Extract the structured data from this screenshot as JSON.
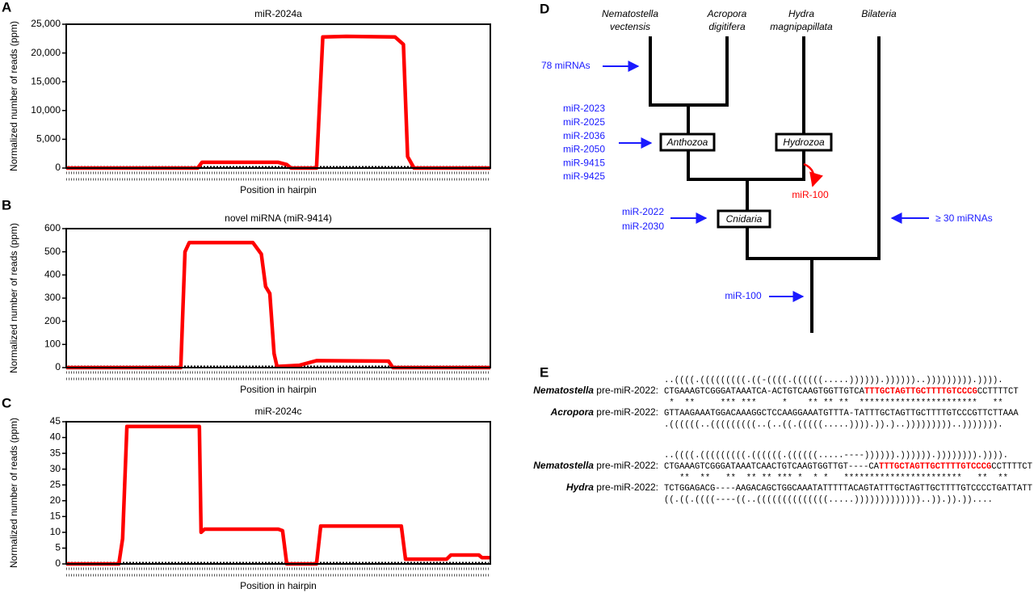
{
  "panels": [
    "A",
    "B",
    "C",
    "D",
    "E"
  ],
  "chart_data": [
    {
      "type": "line",
      "title": "miR-2024a",
      "xlabel": "Position in hairpin",
      "ylabel": "Normalized number of reads (ppm)",
      "xlim": [
        0,
        100
      ],
      "ylim": [
        0,
        25000
      ],
      "yticks": [
        0,
        {
          "value": 5000,
          "label": "5,000"
        },
        {
          "value": 10000,
          "label": "10,000"
        },
        {
          "value": 15000,
          "label": "15,000"
        },
        {
          "value": 20000,
          "label": "20,000"
        },
        {
          "value": 25000,
          "label": "25,000"
        }
      ],
      "x": [
        0,
        31,
        32,
        50,
        52,
        53,
        59,
        60.5,
        66,
        77.5,
        79.5,
        80.5,
        82,
        100
      ],
      "series": [
        {
          "color": "#ff0000",
          "values": [
            0,
            0,
            1000,
            1000,
            600,
            0,
            0,
            22800,
            22900,
            22800,
            21500,
            2000,
            0,
            0
          ]
        }
      ]
    },
    {
      "type": "line",
      "title": "novel miRNA (miR-9414)",
      "xlabel": "Position in hairpin",
      "ylabel": "Normalized number of reads (ppm)",
      "xlim": [
        0,
        100
      ],
      "ylim": [
        0,
        600
      ],
      "yticks": [
        0,
        100,
        200,
        300,
        400,
        500,
        600
      ],
      "x": [
        0,
        27,
        28,
        29,
        44,
        46,
        47,
        48,
        49,
        49.7,
        55,
        59,
        76,
        77,
        100
      ],
      "series": [
        {
          "color": "#ff0000",
          "values": [
            0,
            0,
            500,
            540,
            540,
            490,
            350,
            320,
            60,
            5,
            10,
            30,
            28,
            0,
            0
          ]
        }
      ]
    },
    {
      "type": "line",
      "title": "miR-2024c",
      "xlabel": "Position in hairpin",
      "ylabel": "Normalized number of reads (ppm)",
      "xlim": [
        0,
        100
      ],
      "ylim": [
        0,
        45
      ],
      "yticks": [
        0,
        5,
        10,
        15,
        20,
        25,
        30,
        35,
        40,
        45
      ],
      "x": [
        0,
        12.4,
        13.3,
        14.3,
        31.4,
        31.8,
        32.6,
        50,
        51,
        52,
        59,
        60,
        79,
        80,
        89.7,
        90.7,
        97.3,
        98,
        100
      ],
      "series": [
        {
          "color": "#ff0000",
          "values": [
            0,
            0,
            8,
            43.5,
            43.5,
            10,
            11,
            11,
            10.5,
            0,
            0,
            12,
            12,
            1.5,
            1.5,
            2.8,
            2.8,
            2,
            2
          ]
        }
      ]
    }
  ],
  "tree": {
    "leaves": [
      [
        "Nematostella",
        "vectensis"
      ],
      [
        "Acropora",
        "digitifera"
      ],
      [
        "Hydra",
        "magnipapillata"
      ],
      [
        "Bilateria"
      ]
    ],
    "clades": [
      "Anthozoa",
      "Hydrozoa",
      "Cnidaria"
    ],
    "gains_root": "78 miRNAs",
    "gains_anthozoa": [
      "miR-2023",
      "miR-2025",
      "miR-2036",
      "miR-2050",
      "miR-9415",
      "miR-9425"
    ],
    "gains_cnidaria": [
      "miR-2022",
      "miR-2030"
    ],
    "gains_bilateria": "≥ 30 miRNAs",
    "gain_ancestor": "miR-100",
    "loss_hydra": "miR-100"
  },
  "alignments": {
    "highlight_color": "#ff0000",
    "blocks": [
      {
        "top_structure": "..((((.(((((((((.((-((((.((((((.....)))))).))))))..))))))))).)))).",
        "top": {
          "species": "Nematostella",
          "suffix": " pre-miR-2022:",
          "sequence": [
            "CTGAAAGTCGGGATAAATCA-ACTGTCAAGTGGTTGTCA",
            "TTTGCTAGTTGCTTTTGTCCCG",
            "CCTTTTCT"
          ]
        },
        "match": " *  **     *** ***     *    ** ** **  ***********************   ** ",
        "bottom": {
          "species": "Acropora",
          "suffix": " pre-miR-2022:",
          "sequence": [
            "GTTAAGAAATGGACAAAGGCTCCAAGGAAATGTTTA-TATTTGCTAGTTGCTTTTGTCCCGTTCTTAAA"
          ]
        },
        "bottom_structure": ".((((((..(((((((((..(..((.(((((.....)))).)).)..)))))))))..)))))))."
      },
      {
        "top_structure": "..((((.(((((((((.((((((.((((((.....----)))))).)))))).)))))))).)))).",
        "top": {
          "species": "Nematostella",
          "suffix": " pre-miR-2022:",
          "sequence": [
            "CTGAAAGTCGGGATAAATCAACTGTCAAGTGGTTGT----CA",
            "TTTGCTAGTTGCTTTTGTCCCG",
            "CCTTTTCT"
          ]
        },
        "match": "   **  **   **  ** ** *** *  * *   ***********************   **  **",
        "bottom": {
          "species": "Hydra",
          "suffix": " pre-miR-2022:",
          "sequence": [
            "TCTGGAGACG----AAGACAGCTGGCAAATATTTTTACAGTATTTGCTAGTTGCTTTTGTCCCCTGATTATT"
          ]
        },
        "bottom_structure": "((.((.((((----((..((((((((((((((.....)))))))))))))..)).)).))...."
      }
    ]
  }
}
